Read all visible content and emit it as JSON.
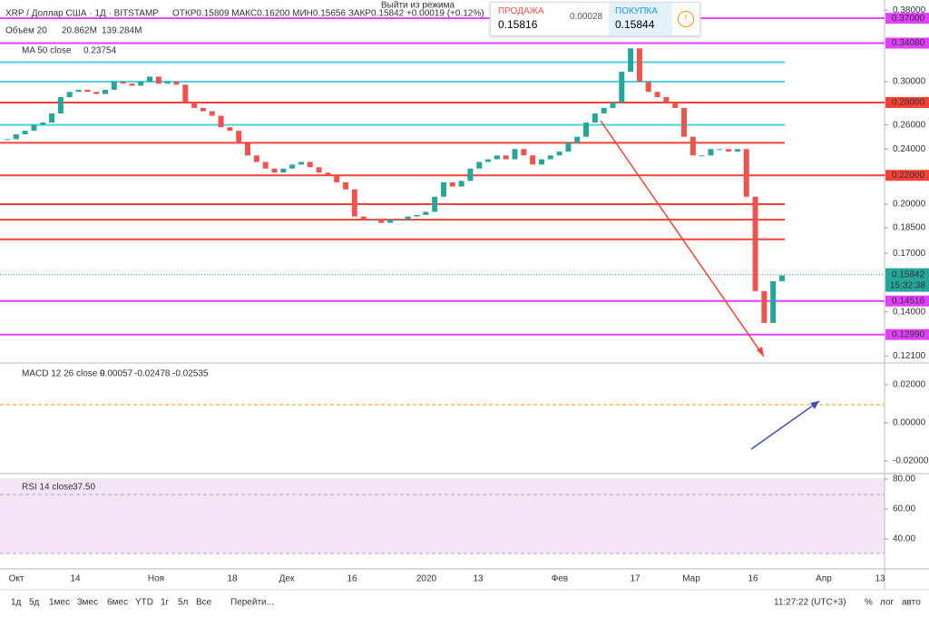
{
  "header": {
    "symbol": "XRP / Доллар США · 1Д · BITSTAMP",
    "ohlc": "ОТКР0.15809 МАКС0.16200 МИН0.15656 ЗАКР0.15842 +0.00019 (+0.12%)",
    "hint": "Выйти из режима"
  },
  "trade": {
    "sell_label": "ПРОДАЖА",
    "sell_price": "0.15816",
    "spread": "0.00028",
    "buy_label": "ПОКУПКА",
    "buy_price": "0.15844"
  },
  "legends": {
    "volume": "Объём 20",
    "volume_v1": "20.862M",
    "volume_v2": "139.284M",
    "ma": "MA 50 close",
    "ma_v": "0.23754",
    "macd": "MACD 12 26 close 9",
    "macd_v1": "0.00057",
    "macd_v2": "-0.02478",
    "macd_v3": "-0.02535",
    "rsi": "RSI 14 close",
    "rsi_v": "37.50"
  },
  "price_axis": {
    "ticks": [
      {
        "value": 0.38,
        "label": "0.38000"
      },
      {
        "value": 0.3,
        "label": "0.30000"
      },
      {
        "value": 0.26,
        "label": "0.26000"
      },
      {
        "value": 0.24,
        "label": "0.24000"
      },
      {
        "value": 0.2,
        "label": "0.20000"
      },
      {
        "value": 0.185,
        "label": "0.18500"
      },
      {
        "value": 0.17,
        "label": "0.17000"
      },
      {
        "value": 0.14,
        "label": "0.14000"
      },
      {
        "value": 0.121,
        "label": "0.12100"
      }
    ],
    "levels": [
      {
        "value": 0.37,
        "label": "0.37000",
        "color": "#e040fb"
      },
      {
        "value": 0.3408,
        "label": "0.34080",
        "color": "#e040fb"
      },
      {
        "value": 0.32,
        "label": null,
        "color": "#4dd0e1"
      },
      {
        "value": 0.3,
        "label": null,
        "color": "#4dd0e1"
      },
      {
        "value": 0.26,
        "label": null,
        "color": "#4dd0e1"
      },
      {
        "value": 0.28,
        "label": "0.28000",
        "color": "#f44336"
      },
      {
        "value": 0.245,
        "label": null,
        "color": "#f44336"
      },
      {
        "value": 0.22,
        "label": "0.22000",
        "color": "#f44336"
      },
      {
        "value": 0.2,
        "label": null,
        "color": "#f44336"
      },
      {
        "value": 0.19,
        "label": null,
        "color": "#f44336"
      },
      {
        "value": 0.178,
        "label": null,
        "color": "#f44336"
      },
      {
        "value": 0.14516,
        "label": "0.14516",
        "color": "#e040fb"
      },
      {
        "value": 0.1299,
        "label": "0.12990",
        "color": "#e040fb"
      }
    ],
    "last": {
      "value": 0.15842,
      "label": "0.15842",
      "time": "15:32:38"
    }
  },
  "closes": [
    0.248,
    0.252,
    0.255,
    0.26,
    0.262,
    0.27,
    0.285,
    0.29,
    0.292,
    0.29,
    0.288,
    0.292,
    0.3,
    0.298,
    0.296,
    0.3,
    0.305,
    0.298,
    0.3,
    0.297,
    0.28,
    0.275,
    0.272,
    0.268,
    0.258,
    0.255,
    0.245,
    0.235,
    0.23,
    0.225,
    0.222,
    0.225,
    0.228,
    0.23,
    0.226,
    0.222,
    0.22,
    0.215,
    0.21,
    0.192,
    0.19,
    0.19,
    0.188,
    0.19,
    0.19,
    0.192,
    0.193,
    0.195,
    0.205,
    0.215,
    0.212,
    0.216,
    0.225,
    0.23,
    0.232,
    0.235,
    0.232,
    0.24,
    0.235,
    0.228,
    0.232,
    0.235,
    0.238,
    0.245,
    0.25,
    0.262,
    0.27,
    0.275,
    0.28,
    0.31,
    0.335,
    0.3,
    0.29,
    0.285,
    0.28,
    0.275,
    0.25,
    0.235,
    0.235,
    0.24,
    0.24,
    0.238,
    0.24,
    0.205,
    0.15,
    0.135,
    0.155,
    0.158
  ],
  "macd_axis": [
    {
      "value": 0.02,
      "label": "0.02000"
    },
    {
      "value": 0,
      "label": "0.00000"
    },
    {
      "value": -0.02,
      "label": "-0.02000"
    }
  ],
  "rsi_axis": [
    {
      "value": 80,
      "label": "80.00"
    },
    {
      "value": 60,
      "label": "60.00"
    },
    {
      "value": 40,
      "label": "40.00"
    }
  ],
  "time_axis": [
    "Окт",
    "14",
    "Ноя",
    "18",
    "Дек",
    "16",
    "2020",
    "13",
    "Фев",
    "17",
    "Мар",
    "16",
    "Апр",
    "13"
  ],
  "toolbar": {
    "ranges": [
      "1д",
      "5д",
      "1мес",
      "3мес",
      "6мес",
      "YTD",
      "1г",
      "5л",
      "Все"
    ],
    "goto": "Перейти...",
    "clock": "11:27:22 (UTC+3)",
    "percent": "%",
    "log": "лог",
    "auto": "авто"
  }
}
